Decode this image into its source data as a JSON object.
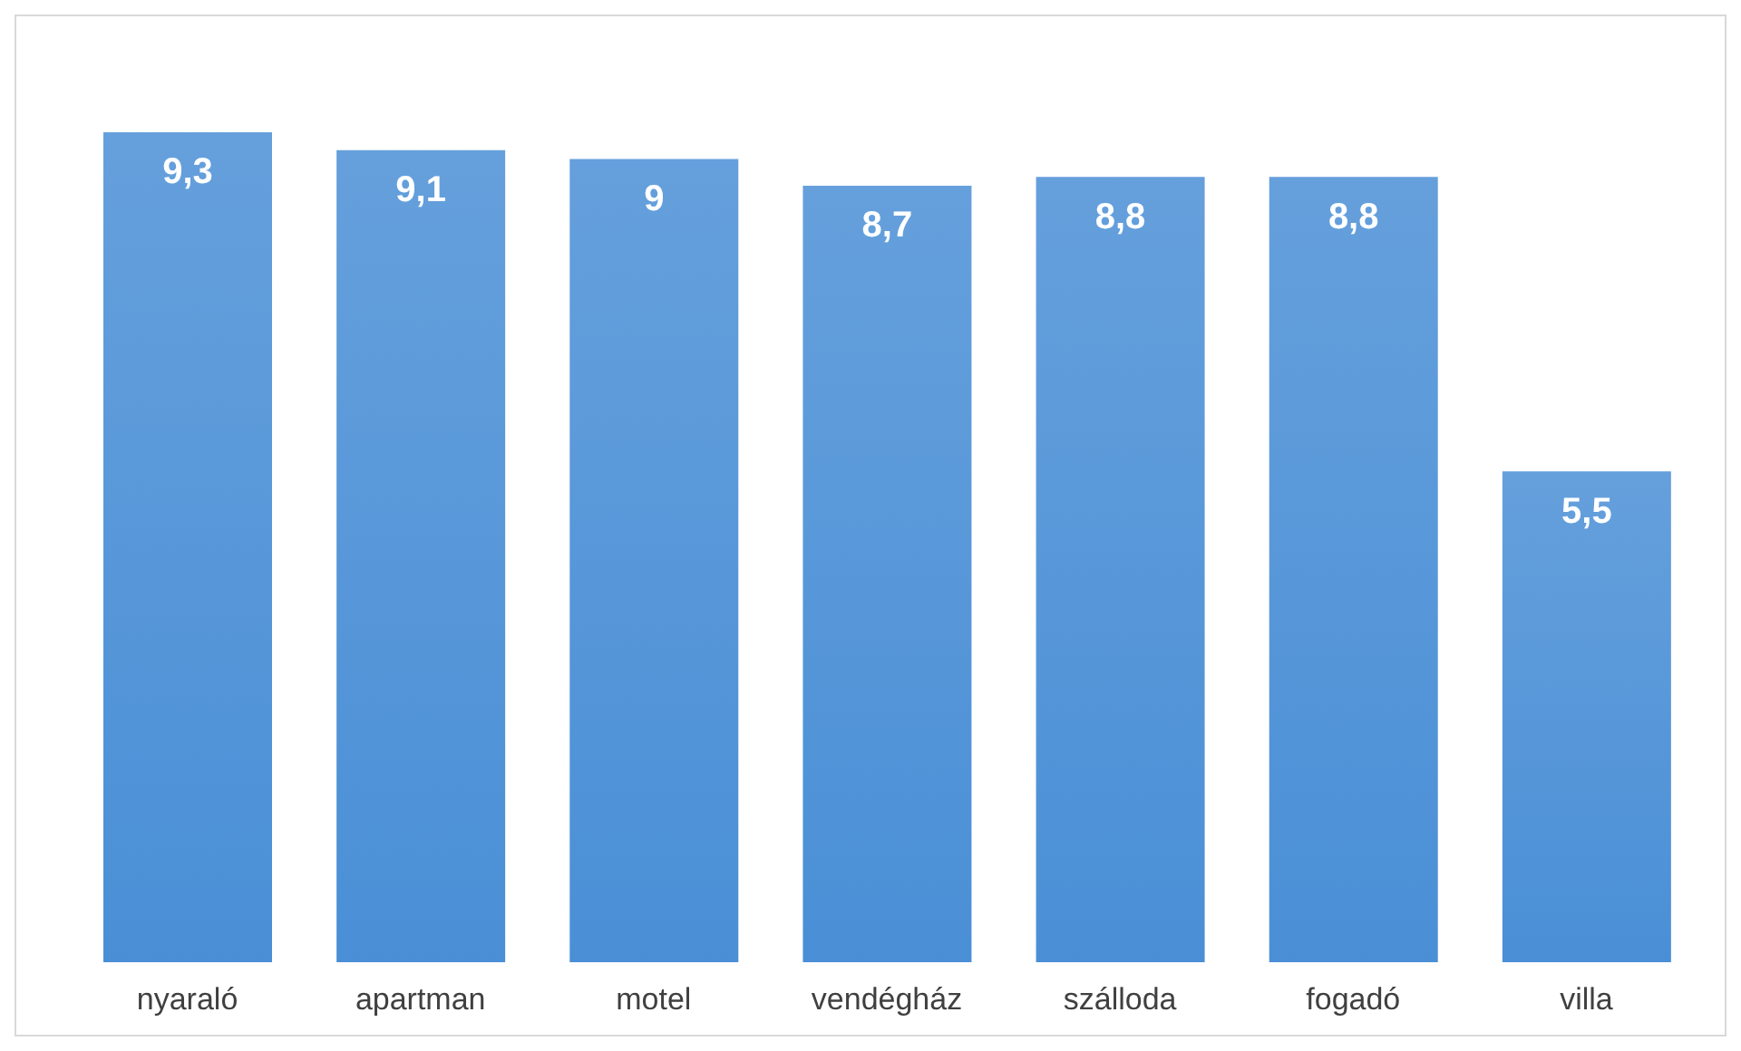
{
  "chart_data": {
    "type": "bar",
    "categories": [
      "nyaraló",
      "apartman",
      "motel",
      "vendégház",
      "szálloda",
      "fogadó",
      "villa"
    ],
    "values": [
      9.3,
      9.1,
      9,
      8.7,
      8.8,
      8.8,
      5.5
    ],
    "value_labels": [
      "9,3",
      "9,1",
      "9",
      "8,7",
      "8,8",
      "8,8",
      "5,5"
    ],
    "color": "#4a8fd6",
    "grid": false,
    "legend": false
  }
}
